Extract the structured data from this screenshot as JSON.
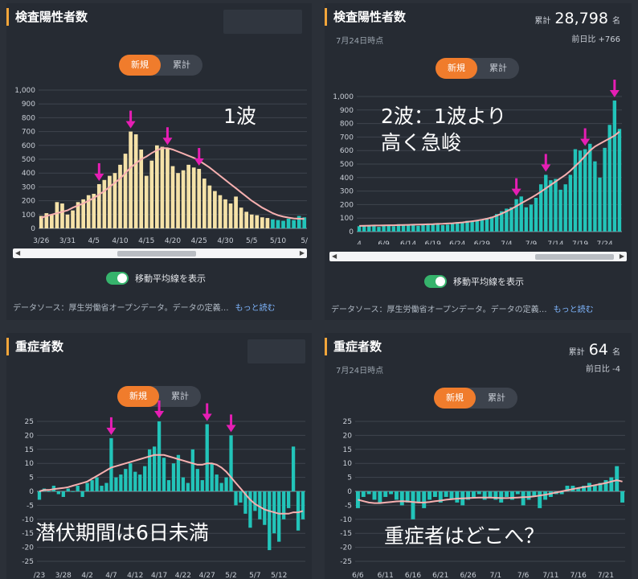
{
  "panels": [
    {
      "title": "検査陽性者数",
      "date": "",
      "stat": null,
      "toggle": [
        "新規",
        "累計"
      ],
      "switch_label": "移動平均線を表示",
      "source": "データソース：厚生労働省オープンデータ。データの定義…",
      "more": "もっと読む",
      "annotation": [
        "1波"
      ]
    },
    {
      "title": "検査陽性者数",
      "date": "7月24日時点",
      "stat": {
        "label": "累計",
        "value": "28,798",
        "unit": "名",
        "delta": "前日比 +766"
      },
      "toggle": [
        "新規",
        "累計"
      ],
      "switch_label": "移動平均線を表示",
      "source": "データソース：厚生労働省オープンデータ。データの定義…",
      "more": "もっと読む",
      "annotation": [
        "2波：1波より",
        "高く急峻"
      ]
    },
    {
      "title": "重症者数",
      "date": "",
      "stat": null,
      "toggle": [
        "新規",
        "累計"
      ],
      "annotation": [
        "潜伏期間は6日未満"
      ]
    },
    {
      "title": "重症者数",
      "date": "7月24日時点",
      "stat": {
        "label": "累計",
        "value": "64",
        "unit": "名",
        "delta": "前日比 -4"
      },
      "toggle": [
        "新規",
        "累計"
      ],
      "annotation": [
        "重症者はどこへ？"
      ]
    }
  ],
  "chart_data": [
    {
      "type": "bar",
      "ylim": [
        0,
        1000
      ],
      "yticks": [
        "0",
        "100",
        "200",
        "300",
        "400",
        "500",
        "600",
        "700",
        "800",
        "900",
        "1,000"
      ],
      "xtick_labels": [
        "3/26",
        "3/31",
        "4/5",
        "4/10",
        "4/15",
        "4/20",
        "4/25",
        "4/30",
        "5/5",
        "5/10",
        "5/"
      ],
      "xtick_index": [
        0,
        5,
        10,
        15,
        20,
        25,
        30,
        35,
        40,
        45,
        50
      ],
      "values": [
        90,
        110,
        100,
        190,
        180,
        100,
        130,
        190,
        210,
        240,
        250,
        320,
        350,
        380,
        400,
        460,
        540,
        700,
        680,
        570,
        380,
        490,
        600,
        590,
        580,
        450,
        400,
        420,
        460,
        440,
        430,
        360,
        310,
        270,
        240,
        210,
        180,
        230,
        150,
        120,
        100,
        95,
        80,
        75,
        65,
        60,
        55,
        70,
        60,
        90,
        80
      ],
      "moving_average": [
        75,
        90,
        100,
        110,
        120,
        130,
        150,
        165,
        180,
        200,
        220,
        245,
        270,
        300,
        330,
        360,
        400,
        440,
        470,
        500,
        520,
        545,
        565,
        580,
        580,
        570,
        555,
        540,
        525,
        510,
        490,
        465,
        440,
        410,
        380,
        350,
        320,
        290,
        260,
        230,
        200,
        175,
        150,
        130,
        110,
        95,
        85,
        78,
        72,
        70,
        68
      ],
      "highlight_from_index": 44,
      "arrow_index": [
        11,
        17,
        24,
        30
      ]
    },
    {
      "type": "bar",
      "ylim": [
        0,
        1000
      ],
      "yticks": [
        "0",
        "100",
        "200",
        "300",
        "400",
        "500",
        "600",
        "700",
        "800",
        "900",
        "1,000"
      ],
      "xtick_labels": [
        "4",
        "6/9",
        "6/14",
        "6/19",
        "6/24",
        "6/29",
        "7/4",
        "7/9",
        "7/14",
        "7/19",
        "7/24"
      ],
      "xtick_index": [
        0,
        5,
        10,
        15,
        20,
        25,
        30,
        35,
        40,
        45,
        50
      ],
      "values": [
        40,
        45,
        42,
        48,
        35,
        44,
        50,
        40,
        55,
        47,
        45,
        52,
        43,
        48,
        50,
        55,
        60,
        48,
        52,
        58,
        70,
        65,
        80,
        75,
        85,
        90,
        100,
        110,
        130,
        150,
        170,
        180,
        240,
        260,
        180,
        200,
        250,
        350,
        420,
        380,
        390,
        310,
        350,
        420,
        610,
        600,
        610,
        650,
        520,
        400,
        620,
        790,
        970,
        760
      ],
      "moving_average": [
        42,
        43,
        44,
        45,
        45,
        46,
        47,
        47,
        48,
        49,
        50,
        51,
        52,
        53,
        54,
        55,
        57,
        58,
        60,
        62,
        65,
        68,
        72,
        77,
        82,
        88,
        95,
        105,
        118,
        133,
        150,
        168,
        188,
        210,
        230,
        250,
        272,
        295,
        320,
        345,
        370,
        395,
        420,
        450,
        485,
        520,
        560,
        600,
        630,
        650,
        670,
        690,
        710,
        740
      ],
      "arrow_index": [
        32,
        38,
        46,
        52
      ]
    },
    {
      "type": "bar",
      "ylim": [
        -25,
        25
      ],
      "yticks": [
        "-25",
        "-20",
        "-15",
        "-10",
        "-5",
        "0",
        "5",
        "10",
        "15",
        "20",
        "25"
      ],
      "xtick_labels": [
        "/23",
        "3/28",
        "4/2",
        "4/7",
        "4/12",
        "4/17",
        "4/22",
        "4/27",
        "5/2",
        "5/7",
        "5/12"
      ],
      "xtick_index": [
        0,
        5,
        10,
        15,
        20,
        25,
        30,
        35,
        40,
        45,
        50
      ],
      "values": [
        -3,
        1,
        0,
        2,
        -1,
        -2,
        1,
        0,
        2,
        -2,
        3,
        4,
        5,
        2,
        3,
        19,
        5,
        6,
        8,
        10,
        7,
        6,
        9,
        15,
        16,
        25,
        12,
        4,
        10,
        13,
        5,
        3,
        15,
        8,
        4,
        24,
        10,
        6,
        3,
        5,
        20,
        -5,
        -4,
        -8,
        -13,
        -7,
        -10,
        -12,
        -21,
        -15,
        -18,
        -10,
        -6,
        16,
        -14,
        -10
      ],
      "moving_average": [
        0,
        0.5,
        0.5,
        0.8,
        1,
        1.2,
        1.5,
        2,
        2.5,
        3,
        3.5,
        4.5,
        5.5,
        6.5,
        7.5,
        8.5,
        9,
        9.5,
        10,
        10.5,
        11,
        11.5,
        12,
        12.5,
        13,
        13,
        13,
        12.5,
        12,
        11.5,
        11,
        10.5,
        10,
        9.5,
        9.5,
        10,
        10,
        9.5,
        8.5,
        7,
        5,
        3,
        1,
        -1,
        -3,
        -4.5,
        -5.5,
        -6.5,
        -7,
        -7.5,
        -8,
        -8,
        -8,
        -7.5,
        -7.5,
        -7
      ],
      "arrow_index": [
        15,
        25,
        35,
        40
      ]
    },
    {
      "type": "bar",
      "ylim": [
        -25,
        25
      ],
      "yticks": [
        "-25",
        "-20",
        "-15",
        "-10",
        "-5",
        "0",
        "5",
        "10",
        "15",
        "20",
        "25"
      ],
      "xtick_labels": [
        "6/6",
        "6/11",
        "6/16",
        "6/21",
        "6/26",
        "7/1",
        "7/6",
        "7/11",
        "7/16",
        "7/21"
      ],
      "xtick_index": [
        0,
        5,
        10,
        15,
        20,
        25,
        30,
        35,
        40,
        45
      ],
      "values": [
        -6,
        -2,
        -1,
        -3,
        -4,
        -2,
        -1,
        -3,
        -5,
        -4,
        -10,
        -4,
        -6,
        -3,
        -2,
        -4,
        -2,
        -3,
        -4,
        -5,
        -3,
        -2,
        -1,
        -3,
        -2,
        -3,
        -4,
        -2,
        -3,
        -1,
        -5,
        -3,
        -2,
        -6,
        -3,
        -2,
        -1,
        -1,
        2,
        2,
        1,
        2,
        3,
        2,
        3,
        4,
        5,
        9,
        -4
      ],
      "moving_average": [
        -3,
        -3.5,
        -4,
        -4.2,
        -4.2,
        -4,
        -3.8,
        -3.6,
        -3.5,
        -3.6,
        -3.8,
        -4,
        -4,
        -3.8,
        -3.5,
        -3.3,
        -3,
        -2.8,
        -2.6,
        -2.5,
        -2.4,
        -2.3,
        -2.2,
        -2.2,
        -2.2,
        -2.3,
        -2.4,
        -2.4,
        -2.3,
        -2.2,
        -2.1,
        -2,
        -1.8,
        -1.5,
        -1.2,
        -0.8,
        -0.4,
        0,
        0.4,
        0.8,
        1.2,
        1.5,
        1.8,
        2.2,
        2.6,
        3,
        3.5,
        4,
        3.5
      ]
    }
  ],
  "colors": {
    "bar_first_wave": "#f5e2a8",
    "bar_teal": "#22c4b9",
    "moving_average": "#f7b0b0",
    "arrow": "#e61eb4",
    "accent": "#f07c2c"
  }
}
